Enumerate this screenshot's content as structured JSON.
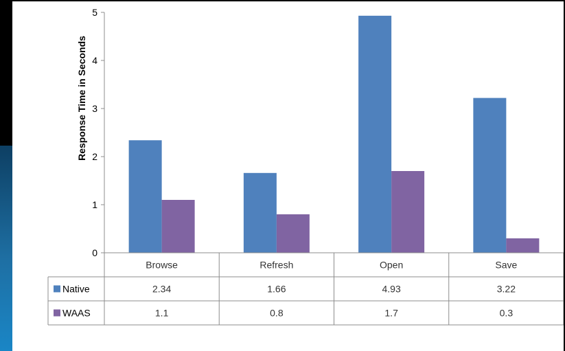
{
  "chart_data": {
    "type": "bar",
    "title": "",
    "xlabel": "",
    "ylabel": "Response Time in Seconds",
    "ylim": [
      0,
      5
    ],
    "yticks": [
      0,
      1,
      2,
      3,
      4,
      5
    ],
    "categories": [
      "Browse",
      "Refresh",
      "Open",
      "Save"
    ],
    "series": [
      {
        "name": "Native",
        "color": "#4f81bd",
        "values": [
          2.34,
          1.66,
          4.93,
          3.22
        ],
        "labels": [
          "2.34",
          "1.66",
          "4.93",
          "3.22"
        ]
      },
      {
        "name": "WAAS",
        "color": "#8064a2",
        "values": [
          1.1,
          0.8,
          1.7,
          0.3
        ],
        "labels": [
          "1.1",
          "0.8",
          "1.7",
          "0.3"
        ]
      }
    ],
    "grid": false,
    "legend": "data-table"
  }
}
